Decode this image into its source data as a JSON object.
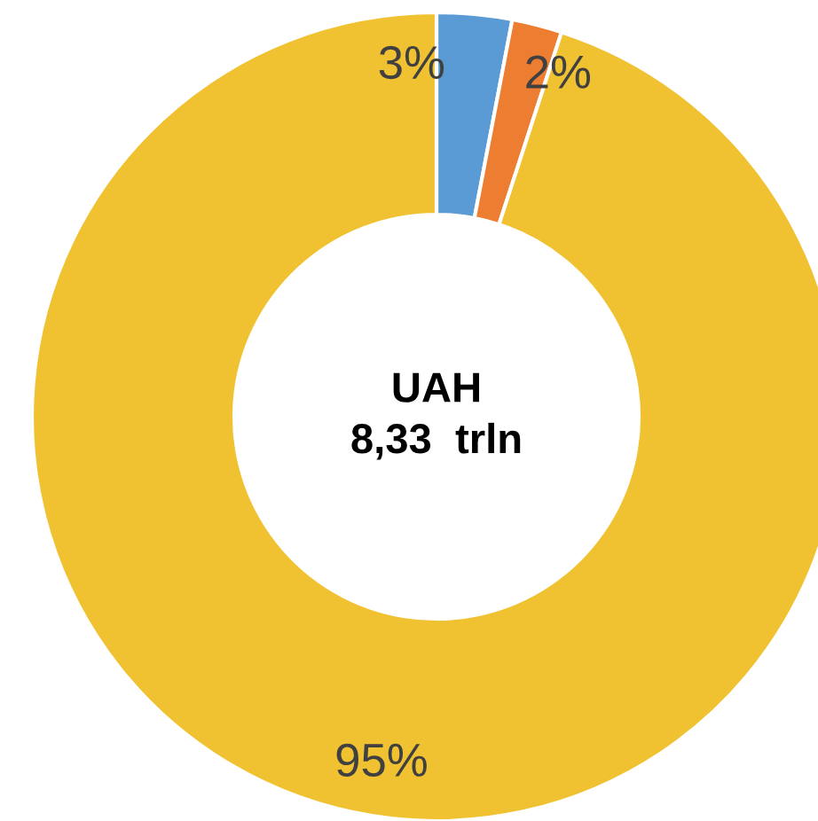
{
  "chart_data": {
    "type": "donut",
    "categories": [
      null,
      null,
      null
    ],
    "values": [
      3,
      2,
      95
    ],
    "colors": [
      "#5b9bd5",
      "#ed7d31",
      "#f0c232"
    ],
    "value_labels": [
      "3%",
      "2%",
      "95%"
    ],
    "annotations": [
      "UAH\n8,33  trln"
    ],
    "legend": false
  }
}
